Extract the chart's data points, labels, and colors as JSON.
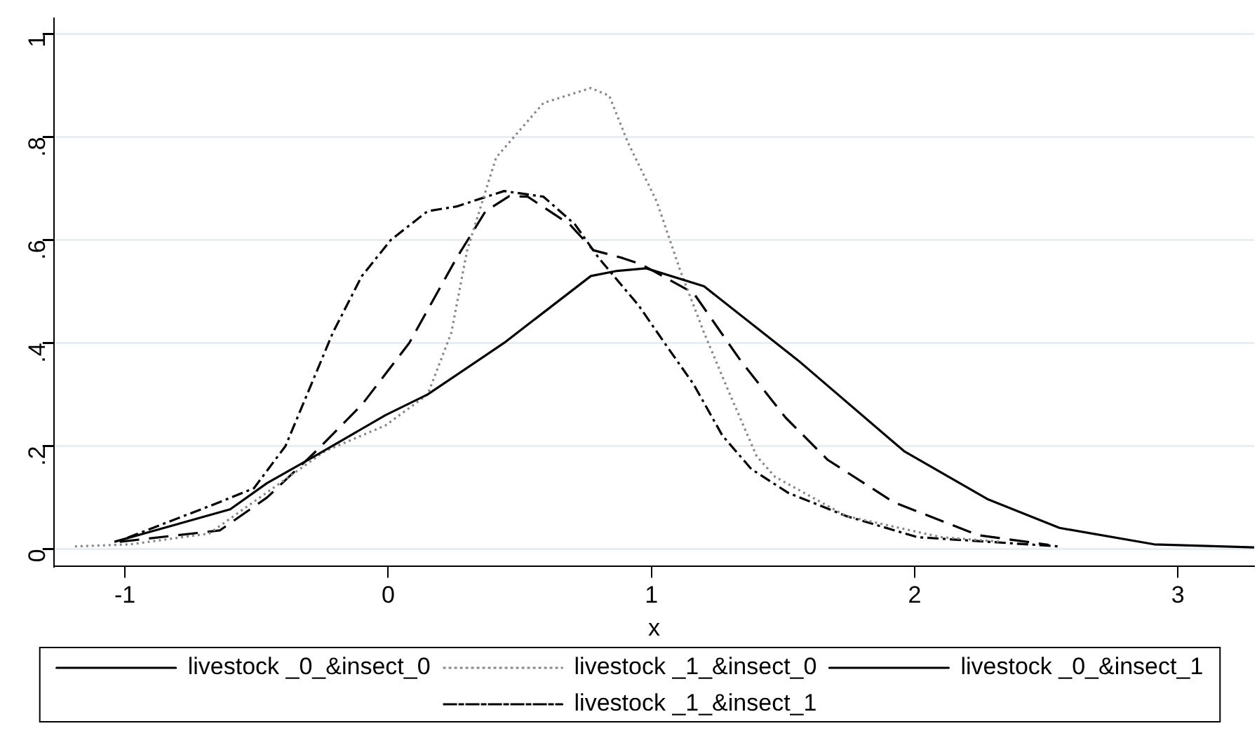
{
  "chart_data": {
    "type": "line",
    "xlabel": "x",
    "xlim": [
      -1.27,
      3.29
    ],
    "xticks": [
      -1,
      0,
      1,
      2,
      3
    ],
    "ylim": [
      -0.034,
      1.03
    ],
    "yticks": [
      0,
      {
        "value": 0.2,
        "label": ".2"
      },
      {
        "value": 0.4,
        "label": ".4"
      },
      {
        "value": 0.6,
        "label": ".6"
      },
      {
        "value": 0.8,
        "label": ".8"
      },
      1
    ],
    "grid": "y",
    "legend": "bottom",
    "marker": "none",
    "series": [
      {
        "name": "livestock _0_&insect_0",
        "color": "#000000",
        "line_style": "solid",
        "x": [
          -1.04,
          -0.6,
          -0.46,
          -0.28,
          -0.01,
          0.15,
          0.44,
          0.77,
          0.87,
          0.98,
          1.2,
          1.56,
          1.96,
          2.28,
          2.55,
          2.91,
          3.29
        ],
        "values": [
          0.014,
          0.077,
          0.128,
          0.18,
          0.26,
          0.3,
          0.4,
          0.53,
          0.54,
          0.545,
          0.51,
          0.365,
          0.19,
          0.096,
          0.041,
          0.009,
          0.003
        ]
      },
      {
        "name": "livestock _1_&insect_0",
        "color": "#888888",
        "line_style": "dotted",
        "x": [
          -1.19,
          -0.98,
          -0.68,
          -0.46,
          -0.24,
          -0.01,
          0.15,
          0.24,
          0.3,
          0.41,
          0.59,
          0.77,
          0.84,
          0.91,
          1.02,
          1.11,
          1.2,
          1.29,
          1.4,
          1.47,
          1.74,
          2.1,
          2.33
        ],
        "values": [
          0.005,
          0.009,
          0.03,
          0.11,
          0.19,
          0.24,
          0.3,
          0.42,
          0.58,
          0.76,
          0.866,
          0.895,
          0.88,
          0.79,
          0.675,
          0.54,
          0.42,
          0.31,
          0.18,
          0.14,
          0.064,
          0.023,
          0.014
        ]
      },
      {
        "name": "livestock _0_&insect_1",
        "color": "#000000",
        "line_style": "dashed",
        "x": [
          -1.02,
          -0.64,
          -0.46,
          -0.28,
          -0.1,
          0.08,
          0.26,
          0.37,
          0.46,
          0.53,
          0.69,
          0.78,
          0.89,
          0.96,
          1.16,
          1.34,
          1.51,
          1.67,
          1.92,
          2.24,
          2.51
        ],
        "values": [
          0.014,
          0.036,
          0.1,
          0.187,
          0.28,
          0.4,
          0.565,
          0.656,
          0.685,
          0.684,
          0.63,
          0.58,
          0.565,
          0.553,
          0.497,
          0.365,
          0.255,
          0.173,
          0.091,
          0.027,
          0.008
        ]
      },
      {
        "name": "livestock _1_&insect_1",
        "color": "#000000",
        "line_style": "dashdot",
        "x": [
          -0.99,
          -0.64,
          -0.51,
          -0.39,
          -0.21,
          -0.1,
          0.01,
          0.15,
          0.26,
          0.44,
          0.59,
          0.71,
          0.8,
          0.89,
          0.95,
          1.05,
          1.16,
          1.27,
          1.38,
          1.52,
          1.74,
          2.01,
          2.55
        ],
        "values": [
          0.022,
          0.091,
          0.118,
          0.2,
          0.42,
          0.53,
          0.6,
          0.656,
          0.665,
          0.695,
          0.684,
          0.63,
          0.565,
          0.51,
          0.474,
          0.4,
          0.32,
          0.22,
          0.155,
          0.109,
          0.064,
          0.023,
          0.005
        ]
      }
    ]
  }
}
